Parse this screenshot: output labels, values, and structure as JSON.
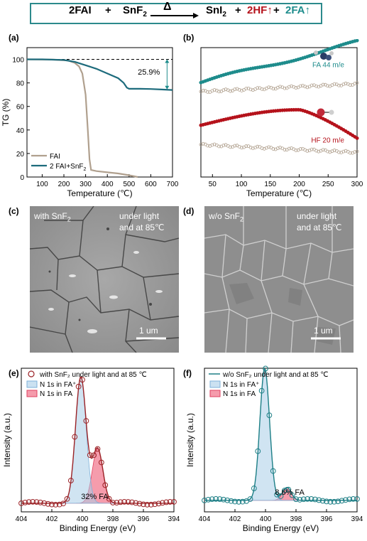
{
  "equation": {
    "t1": "2FAI",
    "plus1": "+",
    "t2": "SnF",
    "t2_sub": "2",
    "arrow_label": "Δ",
    "t3": "SnI",
    "t3_sub": "2",
    "plus2": "+",
    "t4": "2HF↑",
    "plus3": "+",
    "t5": "2FA↑",
    "colors": {
      "hf": "#b5121b",
      "fa": "#1e8c8c",
      "box": "#2c8a8c"
    }
  },
  "labels": {
    "a": "(a)",
    "b": "(b)",
    "c": "(c)",
    "d": "(d)",
    "e": "(e)",
    "f": "(f)"
  },
  "sem_c": {
    "with_text": "with SnF",
    "with_sub": "2",
    "cond1": "under light",
    "cond2": "and at 85℃",
    "scale": "1 um"
  },
  "sem_d": {
    "with_text": "w/o SnF",
    "with_sub": "2",
    "cond1": "under light",
    "cond2": "and at 85℃",
    "scale": "1 um"
  },
  "chart_data": [
    {
      "panel": "a",
      "type": "line",
      "xlabel": "Temperature (℃)",
      "ylabel": "TG (%)",
      "xlim": [
        30,
        700
      ],
      "ylim": [
        0,
        110
      ],
      "xticks": [
        100,
        200,
        300,
        400,
        500,
        600,
        700
      ],
      "yticks": [
        0,
        20,
        40,
        60,
        80,
        100
      ],
      "legend_position": "bottom-left",
      "annotation": "25.9%",
      "series": [
        {
          "name": "FAI",
          "color": "#b0a08e",
          "points": [
            [
              30,
              100
            ],
            [
              150,
              99.8
            ],
            [
              220,
              99
            ],
            [
              250,
              97
            ],
            [
              270,
              94
            ],
            [
              285,
              88
            ],
            [
              300,
              70
            ],
            [
              310,
              40
            ],
            [
              318,
              15
            ],
            [
              325,
              6
            ],
            [
              350,
              5
            ],
            [
              400,
              4
            ],
            [
              450,
              3
            ],
            [
              500,
              1.5
            ],
            [
              540,
              0
            ]
          ]
        },
        {
          "name": "2 FAI+SnF",
          "name_sub": "2",
          "color": "#1d6b7c",
          "points": [
            [
              30,
              100
            ],
            [
              100,
              100
            ],
            [
              200,
              99.5
            ],
            [
              250,
              98
            ],
            [
              300,
              95
            ],
            [
              350,
              92
            ],
            [
              400,
              88
            ],
            [
              450,
              84
            ],
            [
              475,
              80
            ],
            [
              490,
              76
            ],
            [
              500,
              75
            ],
            [
              550,
              75
            ],
            [
              600,
              74.8
            ],
            [
              650,
              74.4
            ],
            [
              700,
              74
            ]
          ]
        }
      ]
    },
    {
      "panel": "b",
      "type": "scatter",
      "xlabel": "Temperature (℃)",
      "ylabel": "",
      "xlim": [
        30,
        300
      ],
      "xticks": [
        50,
        100,
        150,
        200,
        250,
        300
      ],
      "y_units": "arbitrary offset, no tick labels",
      "series": [
        {
          "name": "FA 44 m/e",
          "color": "#1e8c8c",
          "filled": true,
          "x": [
            30,
            300
          ],
          "y": [
            0.73,
            1.04
          ],
          "shape": "rising"
        },
        {
          "name": "FA background",
          "color": "#b0a08e",
          "filled": false,
          "x": [
            30,
            300
          ],
          "y": [
            0.66,
            0.72
          ],
          "shape": "flat"
        },
        {
          "name": "HF 20 m/e",
          "color": "#b5121b",
          "filled": true,
          "x": [
            30,
            200,
            300
          ],
          "y": [
            0.4,
            0.52,
            0.3
          ],
          "shape": "hump"
        },
        {
          "name": "HF background",
          "color": "#b0a08e",
          "filled": false,
          "x": [
            30,
            300
          ],
          "y": [
            0.25,
            0.19
          ],
          "shape": "flat"
        }
      ]
    },
    {
      "panel": "e",
      "type": "line",
      "xlabel": "Binding Energy (eV)",
      "ylabel": "Intensity (a.u.)",
      "xlim": [
        404,
        394
      ],
      "xticks": [
        404,
        402,
        400,
        398,
        396,
        394
      ],
      "legend": [
        "with SnF₂ under light and at 85 ℃",
        "N 1s in FA⁺",
        "N 1s in FA"
      ],
      "annotation": "32% FA",
      "peaks": [
        {
          "name": "N 1s in FA+",
          "center": 400.1,
          "height": 0.88,
          "width": 0.55,
          "color": "#a9cde8"
        },
        {
          "name": "N 1s in FA",
          "center": 399.0,
          "height": 0.38,
          "width": 0.55,
          "color": "#ee5a74"
        }
      ],
      "baseline": 0.06,
      "marker_color": "#9b2226"
    },
    {
      "panel": "f",
      "type": "line",
      "xlabel": "Binding Energy (eV)",
      "ylabel": "Intensity (a.u.)",
      "xlim": [
        404,
        394
      ],
      "xticks": [
        404,
        402,
        400,
        398,
        396,
        394
      ],
      "legend": [
        "w/o SnF₂ under light and at 85 ℃",
        "N 1s in FA⁺",
        "N 1s in FA"
      ],
      "annotation": "8.6% FA",
      "peaks": [
        {
          "name": "N 1s in FA+",
          "center": 400.05,
          "height": 0.92,
          "width": 0.5,
          "color": "#a9cde8"
        },
        {
          "name": "N 1s in FA",
          "center": 398.6,
          "height": 0.09,
          "width": 0.45,
          "color": "#ee5a74"
        }
      ],
      "baseline": 0.08,
      "marker_color": "#1d7f86"
    }
  ]
}
